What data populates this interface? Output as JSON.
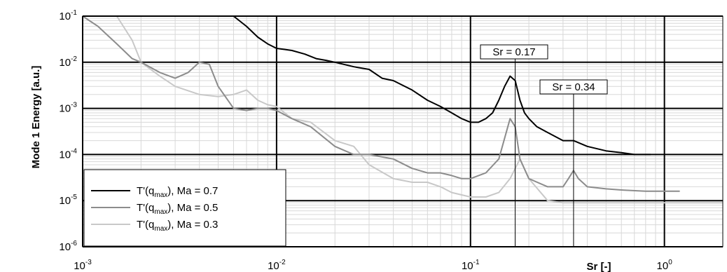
{
  "chart_data": {
    "type": "line",
    "title": "",
    "xlabel": "Sr [-]",
    "ylabel": "Mode 1 Energy [a.u.]",
    "xscale": "log",
    "yscale": "log",
    "xlim": [
      0.001,
      2
    ],
    "ylim": [
      1e-06,
      0.1
    ],
    "grid": true,
    "x_ticks": [
      {
        "base": "10",
        "exp": "-3",
        "value": 0.001
      },
      {
        "base": "10",
        "exp": "-2",
        "value": 0.01
      },
      {
        "base": "10",
        "exp": "-1",
        "value": 0.1
      },
      {
        "base": "10",
        "exp": "0",
        "value": 1
      }
    ],
    "y_ticks": [
      {
        "base": "10",
        "exp": "-1",
        "value": 0.1
      },
      {
        "base": "10",
        "exp": "-2",
        "value": 0.01
      },
      {
        "base": "10",
        "exp": "-3",
        "value": 0.001
      },
      {
        "base": "10",
        "exp": "-4",
        "value": 0.0001
      },
      {
        "base": "10",
        "exp": "-5",
        "value": 1e-05
      },
      {
        "base": "10",
        "exp": "-6",
        "value": 1e-06
      }
    ],
    "legend_position": "bottom-left",
    "series": [
      {
        "name_pre": "T'(q",
        "name_sub": "max",
        "name_post": "), Ma = 0.7",
        "color": "#000000",
        "x": [
          0.001,
          0.0015,
          0.002,
          0.003,
          0.004,
          0.005,
          0.006,
          0.007,
          0.008,
          0.009,
          0.01,
          0.011,
          0.012,
          0.014,
          0.016,
          0.018,
          0.02,
          0.025,
          0.03,
          0.035,
          0.04,
          0.05,
          0.06,
          0.07,
          0.08,
          0.09,
          0.1,
          0.11,
          0.12,
          0.13,
          0.14,
          0.15,
          0.16,
          0.17,
          0.18,
          0.19,
          0.2,
          0.22,
          0.25,
          0.3,
          0.34,
          0.4,
          0.5,
          0.6,
          0.7,
          0.8,
          0.85
        ],
        "y": [
          0.1,
          0.1,
          0.1,
          0.1,
          0.1,
          0.1,
          0.1,
          0.06,
          0.035,
          0.025,
          0.02,
          0.019,
          0.018,
          0.015,
          0.012,
          0.011,
          0.01,
          0.008,
          0.007,
          0.0045,
          0.004,
          0.0025,
          0.0015,
          0.0011,
          0.0008,
          0.0006,
          0.0005,
          0.0005,
          0.0006,
          0.0008,
          0.0015,
          0.003,
          0.005,
          0.004,
          0.0015,
          0.0008,
          0.0006,
          0.0004,
          0.0003,
          0.0002,
          0.0002,
          0.00015,
          0.00012,
          0.00011,
          0.0001,
          0.0001,
          0.0001
        ]
      },
      {
        "name_pre": "T'(q",
        "name_sub": "max",
        "name_post": "), Ma = 0.5",
        "color": "#8c8c8c",
        "x": [
          0.001,
          0.0012,
          0.0015,
          0.0018,
          0.002,
          0.0025,
          0.003,
          0.0035,
          0.004,
          0.0045,
          0.005,
          0.006,
          0.007,
          0.008,
          0.009,
          0.01,
          0.012,
          0.015,
          0.02,
          0.025,
          0.03,
          0.04,
          0.05,
          0.06,
          0.07,
          0.08,
          0.09,
          0.1,
          0.12,
          0.14,
          0.16,
          0.17,
          0.18,
          0.2,
          0.25,
          0.3,
          0.32,
          0.34,
          0.36,
          0.4,
          0.5,
          0.6,
          0.8,
          1,
          1.2
        ],
        "y": [
          0.1,
          0.06,
          0.025,
          0.012,
          0.01,
          0.006,
          0.0045,
          0.006,
          0.01,
          0.009,
          0.003,
          0.001,
          0.0009,
          0.001,
          0.001,
          0.0009,
          0.0006,
          0.0004,
          0.00015,
          0.0001,
          0.0001,
          8e-05,
          5e-05,
          4e-05,
          4e-05,
          3.5e-05,
          3e-05,
          3e-05,
          4e-05,
          8e-05,
          0.0006,
          0.0004,
          8e-05,
          3e-05,
          2e-05,
          2e-05,
          3e-05,
          4.5e-05,
          3e-05,
          2e-05,
          1.8e-05,
          1.7e-05,
          1.6e-05,
          1.6e-05,
          1.6e-05
        ]
      },
      {
        "name_pre": "T'(q",
        "name_sub": "max",
        "name_post": "), Ma = 0.3",
        "color": "#c8c8c8",
        "x": [
          0.001,
          0.0015,
          0.0018,
          0.002,
          0.0025,
          0.003,
          0.004,
          0.005,
          0.006,
          0.007,
          0.008,
          0.009,
          0.01,
          0.012,
          0.015,
          0.02,
          0.025,
          0.03,
          0.04,
          0.05,
          0.06,
          0.07,
          0.08,
          0.1,
          0.12,
          0.14,
          0.16,
          0.18,
          0.2,
          0.25,
          0.3,
          0.35,
          0.4,
          0.5,
          0.7,
          1,
          1.5,
          2
        ],
        "y": [
          0.1,
          0.1,
          0.03,
          0.01,
          0.005,
          0.003,
          0.002,
          0.0018,
          0.002,
          0.0025,
          0.0015,
          0.0012,
          0.0011,
          0.0006,
          0.0005,
          0.0002,
          0.00015,
          6e-05,
          3e-05,
          2.5e-05,
          2.5e-05,
          2e-05,
          1.5e-05,
          1.2e-05,
          1.2e-05,
          1.5e-05,
          3e-05,
          8e-05,
          3e-05,
          1e-05,
          9e-06,
          9e-06,
          9e-06,
          9e-06,
          9e-06,
          9e-06,
          9e-06,
          9e-06
        ]
      }
    ],
    "annotations": [
      {
        "text": "Sr = 0.17",
        "x": 0.17
      },
      {
        "text": "Sr = 0.34",
        "x": 0.34
      }
    ]
  }
}
